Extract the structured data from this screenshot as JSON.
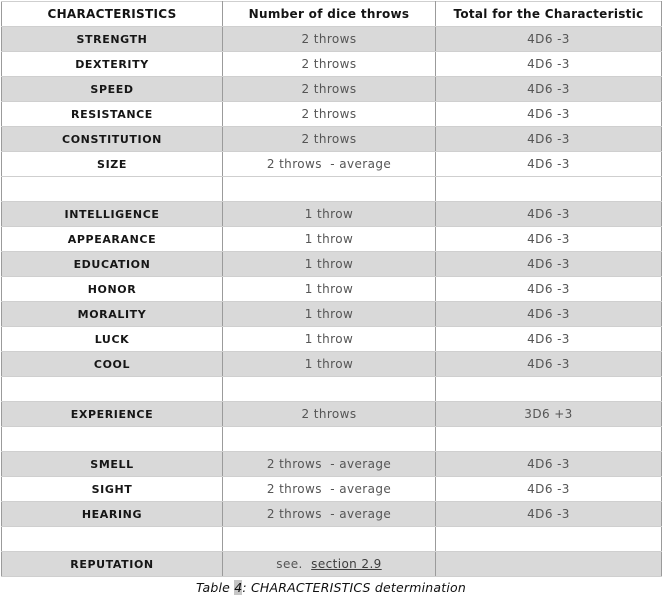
{
  "table": {
    "headers": [
      "CHARACTERISTICS",
      "Number of dice throws",
      "Total for the Characteristic"
    ],
    "rows": [
      {
        "characteristic": "STRENGTH",
        "throws": "2 throws",
        "total": "4D6 -3",
        "shaded": true
      },
      {
        "characteristic": "DEXTERITY",
        "throws": "2 throws",
        "total": "4D6 -3",
        "shaded": false
      },
      {
        "characteristic": "SPEED",
        "throws": "2 throws",
        "total": "4D6 -3",
        "shaded": true
      },
      {
        "characteristic": "RESISTANCE",
        "throws": "2 throws",
        "total": "4D6 -3",
        "shaded": false
      },
      {
        "characteristic": "CONSTITUTION",
        "throws": "2 throws",
        "total": "4D6 -3",
        "shaded": true
      },
      {
        "characteristic": "SIZE",
        "throws": "2 throws  - average",
        "total": "4D6 -3",
        "shaded": false
      },
      {
        "empty": true,
        "shaded": false
      },
      {
        "characteristic": "INTELLIGENCE",
        "throws": "1 throw",
        "total": "4D6 -3",
        "shaded": true
      },
      {
        "characteristic": "APPEARANCE",
        "throws": "1 throw",
        "total": "4D6 -3",
        "shaded": false
      },
      {
        "characteristic": "EDUCATION",
        "throws": "1 throw",
        "total": "4D6 -3",
        "shaded": true
      },
      {
        "characteristic": "HONOR",
        "throws": "1 throw",
        "total": "4D6 -3",
        "shaded": false
      },
      {
        "characteristic": "MORALITY",
        "throws": "1 throw",
        "total": "4D6 -3",
        "shaded": true
      },
      {
        "characteristic": "LUCK",
        "throws": "1 throw",
        "total": "4D6 -3",
        "shaded": false
      },
      {
        "characteristic": "COOL",
        "throws": "1 throw",
        "total": "4D6 -3",
        "shaded": true
      },
      {
        "empty": true,
        "shaded": false
      },
      {
        "characteristic": "EXPERIENCE",
        "throws": "2 throws",
        "total": "3D6 +3",
        "shaded": true
      },
      {
        "empty": true,
        "shaded": false
      },
      {
        "characteristic": "SMELL",
        "throws": "2 throws  - average",
        "total": "4D6 -3",
        "shaded": true
      },
      {
        "characteristic": "SIGHT",
        "throws": "2 throws  - average",
        "total": "4D6 -3",
        "shaded": false
      },
      {
        "characteristic": "HEARING",
        "throws": "2 throws  - average",
        "total": "4D6 -3",
        "shaded": true
      },
      {
        "empty": true,
        "shaded": false
      },
      {
        "characteristic": "REPUTATION",
        "throws_prefix": "see.  ",
        "throws_link": "section 2.9",
        "total": "",
        "shaded": true
      }
    ]
  },
  "caption": {
    "prefix": "Table ",
    "number": "4",
    "suffix": ": CHARACTERISTICS determination"
  },
  "colors": {
    "shaded_row": "#d9d9d9",
    "vertical_border": "#9b9b9b",
    "horizontal_border": "#cfcfcf",
    "header_text": "#141414",
    "characteristic_text": "#161616",
    "value_text": "#555555",
    "caption_number_highlight": "#c6c6c6"
  }
}
